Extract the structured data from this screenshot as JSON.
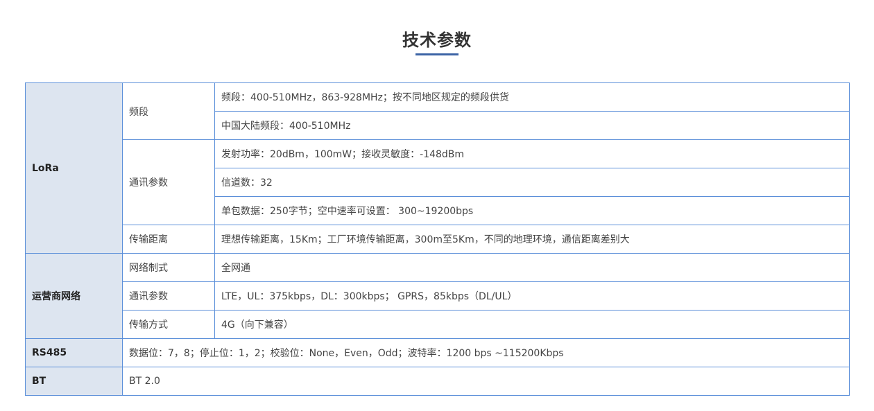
{
  "title": "技术参数",
  "lora": {
    "category": "LoRa",
    "band_label": "频段",
    "band_values": [
      "频段：400-510MHz，863-928MHz；按不同地区规定的频段供货",
      "中国大陆频段：400-510MHz"
    ],
    "comm_label": "通讯参数",
    "comm_values": [
      "发射功率：20dBm，100mW；接收灵敏度：-148dBm",
      "信道数：32",
      "单包数据：250字节；空中速率可设置： 300~19200bps"
    ],
    "distance_label": "传输距离",
    "distance_value": "理想传输距离，15Km；工厂环境传输距离，300m至5Km，不同的地理环境，通信距离差别大"
  },
  "carrier": {
    "category": "运营商网络",
    "rows": [
      {
        "label": "网络制式",
        "value": "全网通"
      },
      {
        "label": "通讯参数",
        "value": "LTE，UL：375kbps，DL：300kbps； GPRS，85kbps（DL/UL）"
      },
      {
        "label": "传输方式",
        "value": "4G（向下兼容）"
      }
    ]
  },
  "rs485": {
    "category": "RS485",
    "value": "数据位：7，8；停止位：1，2；校验位：None，Even，Odd；波特率：1200 bps ~115200Kbps"
  },
  "bt": {
    "category": "BT",
    "value": "BT 2.0"
  },
  "colors": {
    "border": "#5b8fd9",
    "category_bg": "#dde5f0",
    "accent": "#3c63a5"
  }
}
